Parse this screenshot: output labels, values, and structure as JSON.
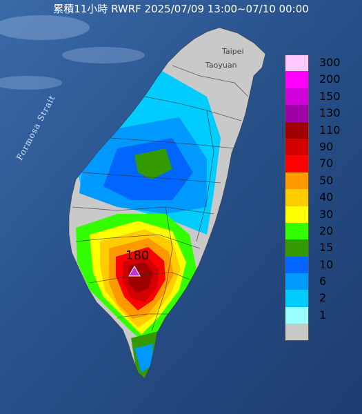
{
  "title": "累積11小時 RWRF 2025/07/09 13:00~07/10 00:00",
  "strait_label": "Formosa Strait",
  "city_labels": [
    "Taipei",
    "Taoyuan"
  ],
  "max_value": "180",
  "colors": {
    "sea": "#1e3f6f",
    "land_gray": "#c9c9c9",
    "max_marker": "#c030d8"
  },
  "legend": [
    {
      "label": "300",
      "color": "#ffc8ff"
    },
    {
      "label": "200",
      "color": "#ff00ff"
    },
    {
      "label": "150",
      "color": "#d000d8"
    },
    {
      "label": "130",
      "color": "#a000a8"
    },
    {
      "label": "110",
      "color": "#a00000"
    },
    {
      "label": "90",
      "color": "#d40000"
    },
    {
      "label": "70",
      "color": "#ff0000"
    },
    {
      "label": "50",
      "color": "#ff9900"
    },
    {
      "label": "40",
      "color": "#ffcc00"
    },
    {
      "label": "30",
      "color": "#ffff00"
    },
    {
      "label": "20",
      "color": "#33ff00"
    },
    {
      "label": "15",
      "color": "#339900"
    },
    {
      "label": "10",
      "color": "#0066ff"
    },
    {
      "label": "6",
      "color": "#0099ff"
    },
    {
      "label": "2",
      "color": "#00ccff"
    },
    {
      "label": "1",
      "color": "#99ffff"
    },
    {
      "label": "",
      "color": "#c8c8c8"
    }
  ]
}
